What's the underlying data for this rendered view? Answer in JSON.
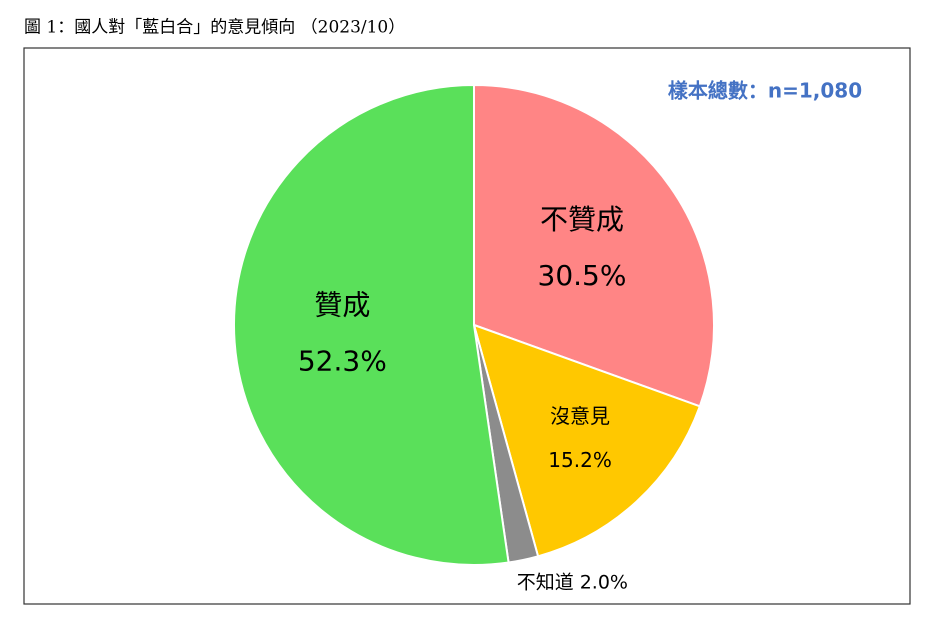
{
  "chart_data": {
    "type": "pie",
    "title": "圖 1：國人對「藍白合」的意見傾向 （2023/10）",
    "annotation": "樣本總數：n=1,080",
    "categories": [
      "不贊成",
      "沒意見",
      "不知道",
      "贊成"
    ],
    "values": [
      30.5,
      15.2,
      2.0,
      52.3
    ],
    "value_labels": [
      "30.5%",
      "15.2%",
      "2.0%",
      "52.3%"
    ],
    "colors": [
      "#ff8585",
      "#ffc800",
      "#8c8c8c",
      "#5ae05a"
    ]
  }
}
